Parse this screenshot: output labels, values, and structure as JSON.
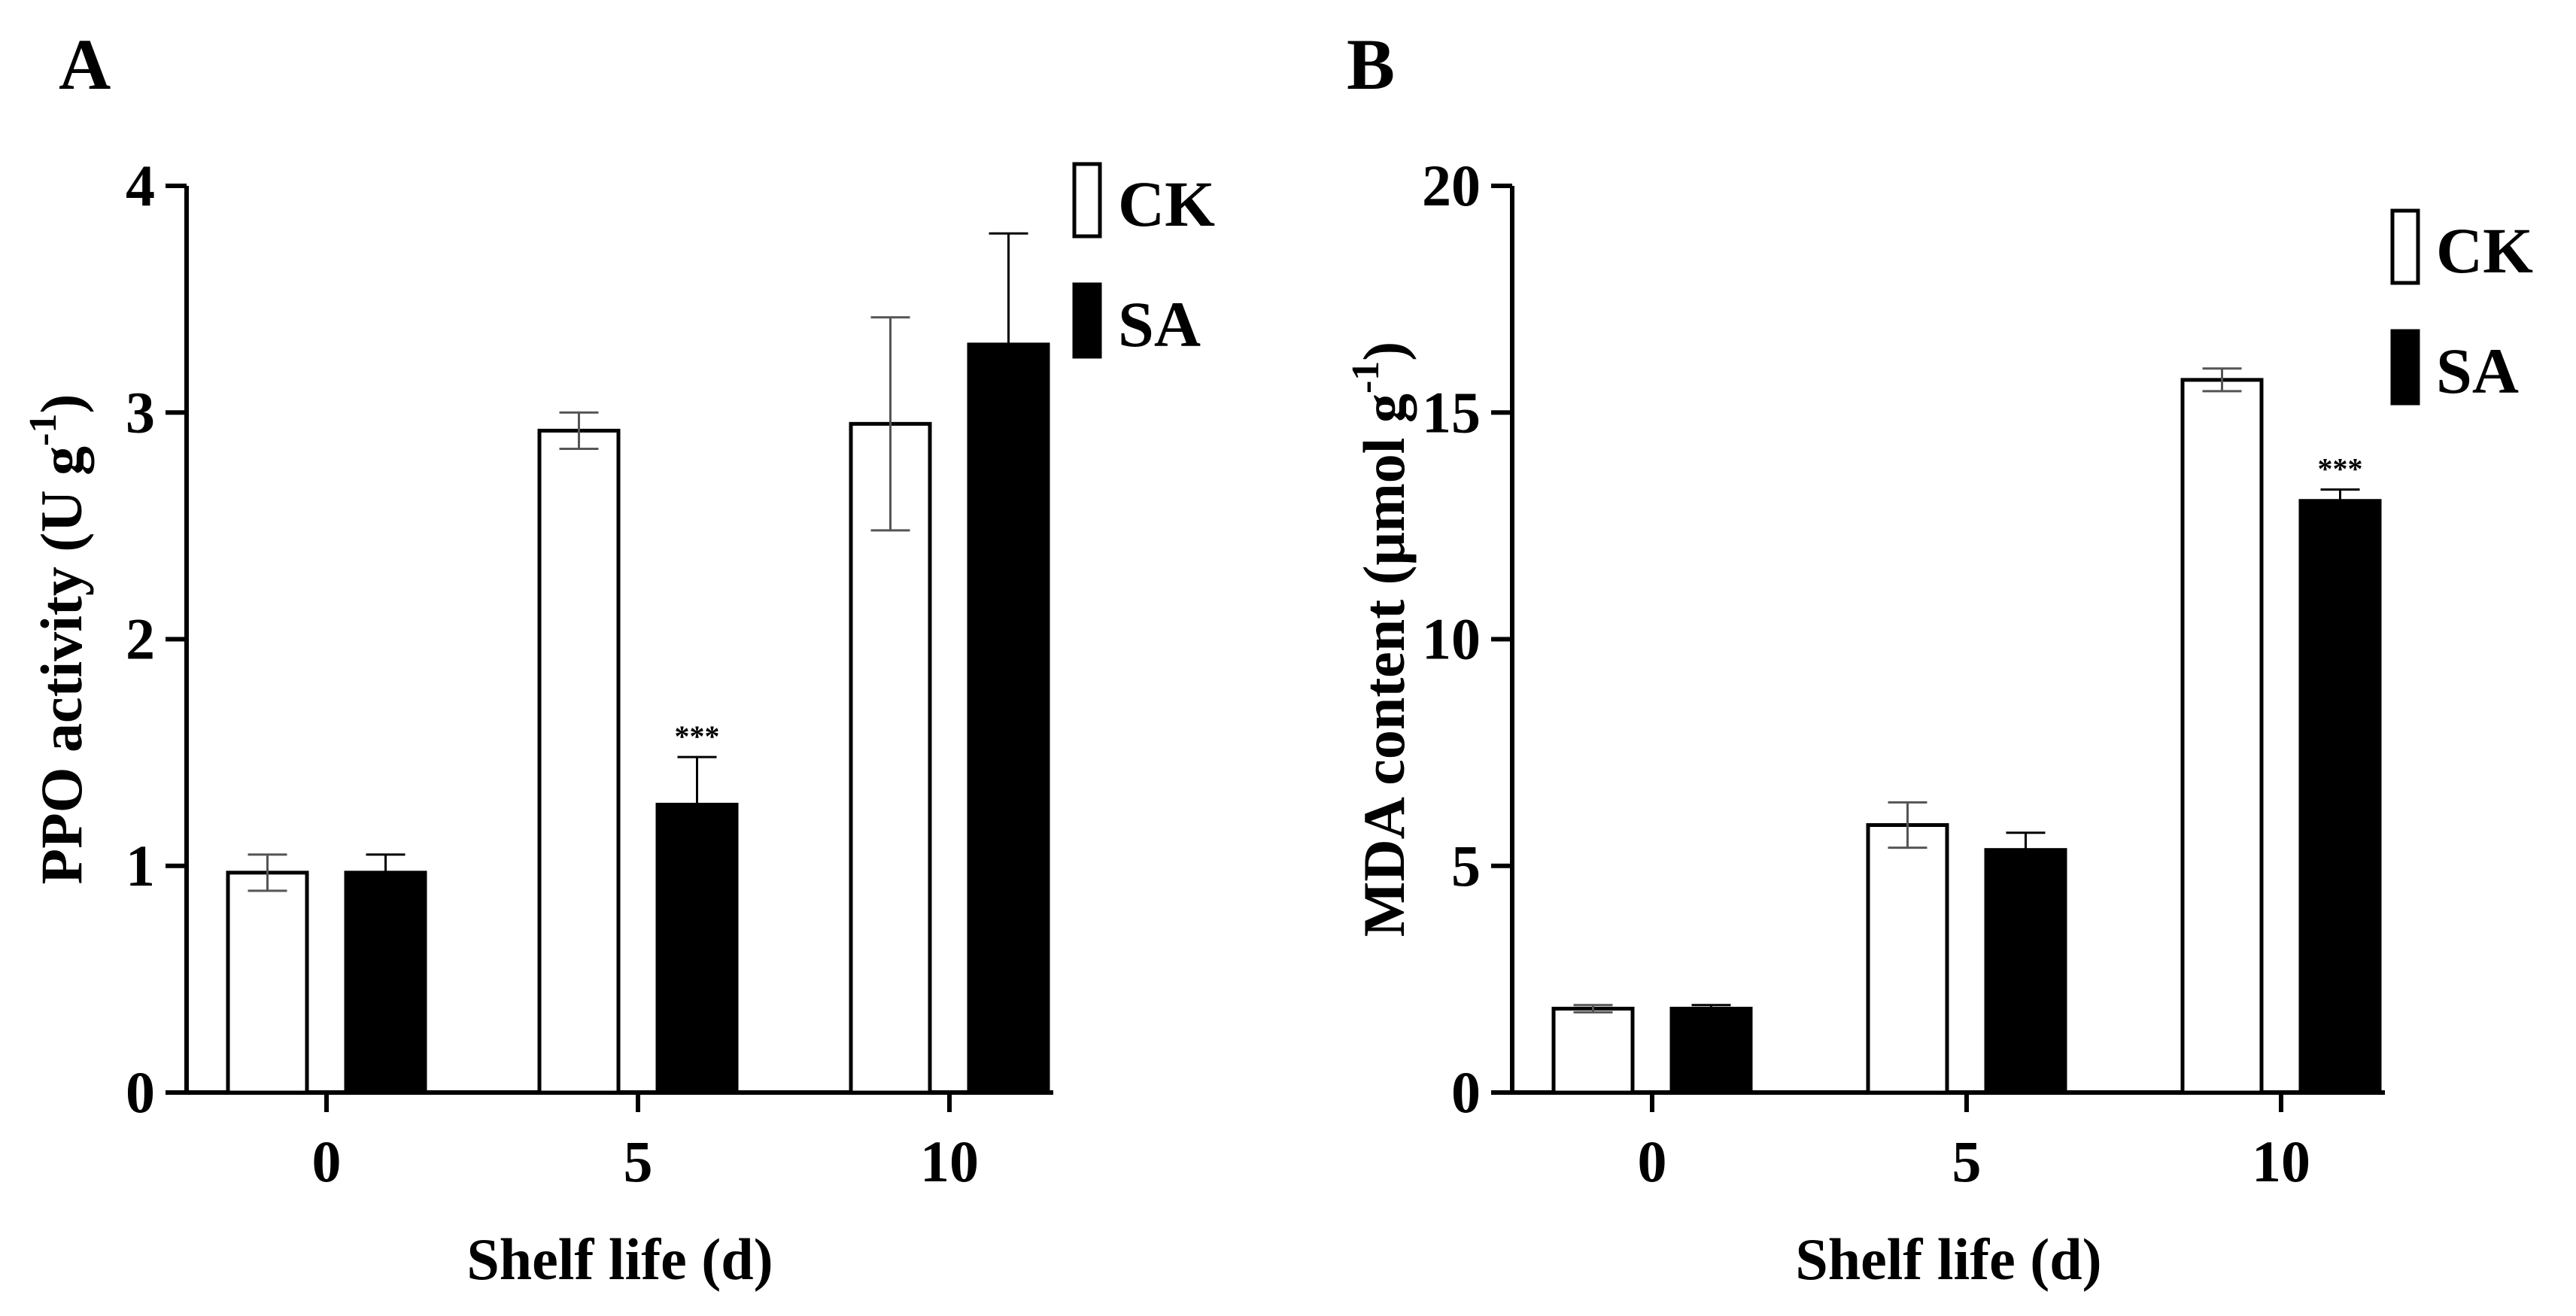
{
  "chart_data": [
    {
      "type": "bar",
      "panel_label": "A",
      "categories": [
        "0",
        "5",
        "10"
      ],
      "xlabel": "Shelf life (d)",
      "ylabel": "PPO activity (U g",
      "ylabel_sup": "-1",
      "ylabel_close": ")",
      "ylim": [
        0,
        4
      ],
      "yticks": [
        0,
        1,
        2,
        3,
        4
      ],
      "legend_position": "top-right",
      "series": [
        {
          "name": "CK",
          "values": [
            0.97,
            2.92,
            2.95
          ],
          "errors": [
            0.08,
            0.08,
            0.47
          ]
        },
        {
          "name": "SA",
          "values": [
            0.97,
            1.27,
            3.3
          ],
          "errors": [
            0.08,
            0.21,
            0.49
          ]
        }
      ],
      "annotations": [
        {
          "category": "5",
          "series": "SA",
          "text": "***"
        }
      ]
    },
    {
      "type": "bar",
      "panel_label": "B",
      "categories": [
        "0",
        "5",
        "10"
      ],
      "xlabel": "Shelf life (d)",
      "ylabel": "MDA content (μmol g",
      "ylabel_sup": "-1",
      "ylabel_close": ")",
      "ylim": [
        0,
        20
      ],
      "yticks": [
        0,
        5,
        10,
        15,
        20
      ],
      "legend_position": "top-right",
      "series": [
        {
          "name": "CK",
          "values": [
            1.85,
            5.9,
            15.72
          ],
          "errors": [
            0.08,
            0.5,
            0.25
          ]
        },
        {
          "name": "SA",
          "values": [
            1.85,
            5.35,
            13.05
          ],
          "errors": [
            0.08,
            0.38,
            0.25
          ]
        }
      ],
      "annotations": [
        {
          "category": "10",
          "series": "SA",
          "text": "***"
        }
      ]
    }
  ]
}
